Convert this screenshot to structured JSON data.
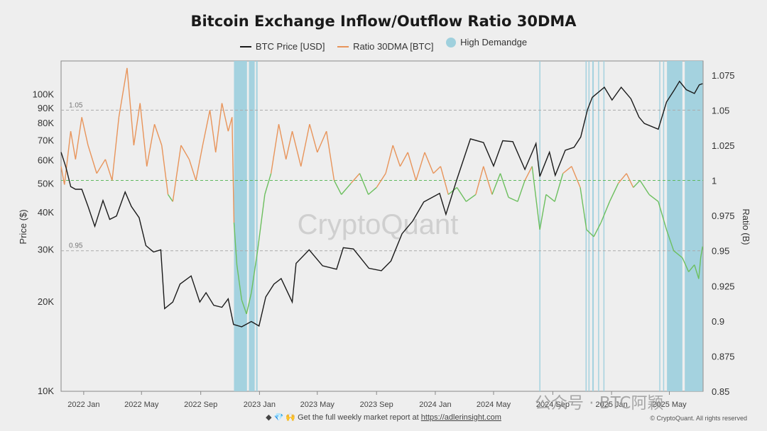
{
  "footer": {
    "icons": "◆ 💎 🙌",
    "text": "Get the full weekly market report at",
    "link": "https://adlerinsight.com",
    "copyright": "© CryptoQuant. All rights reserved"
  },
  "watermark": {
    "text": "公众号 · BTC阿颖"
  },
  "chart_data": {
    "type": "line",
    "title": "Bitcoin Exchange Inflow/Outflow Ratio 30DMA",
    "legend": [
      {
        "name": "BTC Price [USD]",
        "color": "#1a1a1a",
        "kind": "line"
      },
      {
        "name": "Ratio 30DMA [BTC]",
        "color": "#e8945a",
        "kind": "line"
      },
      {
        "name": "High Demandge",
        "color": "#9fd0dd",
        "kind": "dot"
      }
    ],
    "ylabel_left": "Price ($)",
    "ylabel_right": "Ratio (B)",
    "watermark": "CryptoQuant",
    "x_range": [
      "2021-11-15",
      "2025-07-10"
    ],
    "x_ticks": [
      {
        "label": "2022 Jan",
        "date": "2022-01-01"
      },
      {
        "label": "2022 May",
        "date": "2022-05-01"
      },
      {
        "label": "2022 Sep",
        "date": "2022-09-01"
      },
      {
        "label": "2023 Jan",
        "date": "2023-01-01"
      },
      {
        "label": "2023 May",
        "date": "2023-05-01"
      },
      {
        "label": "2023 Sep",
        "date": "2023-09-01"
      },
      {
        "label": "2024 Jan",
        "date": "2024-01-01"
      },
      {
        "label": "2024 May",
        "date": "2024-05-01"
      },
      {
        "label": "2024 Sep",
        "date": "2024-09-01"
      },
      {
        "label": "2025 Jan",
        "date": "2025-01-01"
      },
      {
        "label": "2025 May",
        "date": "2025-05-01"
      }
    ],
    "y_left": {
      "scale": "log",
      "range": [
        10000,
        130000
      ],
      "ticks": [
        {
          "label": "10K",
          "value": 10000
        },
        {
          "label": "20K",
          "value": 20000
        },
        {
          "label": "30K",
          "value": 30000
        },
        {
          "label": "40K",
          "value": 40000
        },
        {
          "label": "50K",
          "value": 50000
        },
        {
          "label": "60K",
          "value": 60000
        },
        {
          "label": "70K",
          "value": 70000
        },
        {
          "label": "80K",
          "value": 80000
        },
        {
          "label": "90K",
          "value": 90000
        },
        {
          "label": "100K",
          "value": 100000
        }
      ]
    },
    "y_right": {
      "scale": "linear",
      "range": [
        0.85,
        1.085
      ],
      "ticks": [
        {
          "label": "0.85",
          "value": 0.85
        },
        {
          "label": "0.875",
          "value": 0.875
        },
        {
          "label": "0.9",
          "value": 0.9
        },
        {
          "label": "0.925",
          "value": 0.925
        },
        {
          "label": "0.95",
          "value": 0.95
        },
        {
          "label": "0.975",
          "value": 0.975
        },
        {
          "label": "1",
          "value": 1.0
        },
        {
          "label": "1.025",
          "value": 1.025
        },
        {
          "label": "1.05",
          "value": 1.05
        },
        {
          "label": "1.075",
          "value": 1.075
        }
      ]
    },
    "reference_lines": [
      {
        "label": "1.05",
        "value": 1.05,
        "color": "#aaaaaa"
      },
      {
        "label": "",
        "value": 1.0,
        "color": "#5fb85f"
      },
      {
        "label": "0.95",
        "value": 0.95,
        "color": "#aaaaaa"
      }
    ],
    "ratio_colors": {
      "above": "#e8945a",
      "below": "#6cbf5e"
    },
    "series": [
      {
        "name": "BTC Price [USD]",
        "axis": "left",
        "color": "#1a1a1a",
        "points": [
          [
            "2021-11-15",
            64000
          ],
          [
            "2021-11-25",
            57000
          ],
          [
            "2021-12-05",
            49000
          ],
          [
            "2021-12-15",
            48000
          ],
          [
            "2021-12-28",
            48000
          ],
          [
            "2022-01-10",
            42000
          ],
          [
            "2022-01-24",
            36000
          ],
          [
            "2022-02-10",
            44000
          ],
          [
            "2022-02-24",
            38000
          ],
          [
            "2022-03-10",
            39000
          ],
          [
            "2022-03-28",
            47000
          ],
          [
            "2022-04-10",
            42000
          ],
          [
            "2022-04-26",
            38500
          ],
          [
            "2022-05-10",
            31000
          ],
          [
            "2022-05-26",
            29500
          ],
          [
            "2022-06-10",
            30000
          ],
          [
            "2022-06-18",
            19000
          ],
          [
            "2022-07-05",
            20000
          ],
          [
            "2022-07-20",
            23000
          ],
          [
            "2022-08-12",
            24500
          ],
          [
            "2022-08-30",
            20000
          ],
          [
            "2022-09-12",
            21500
          ],
          [
            "2022-09-28",
            19500
          ],
          [
            "2022-10-15",
            19200
          ],
          [
            "2022-10-28",
            20500
          ],
          [
            "2022-11-08",
            16800
          ],
          [
            "2022-11-25",
            16500
          ],
          [
            "2022-12-15",
            17200
          ],
          [
            "2022-12-31",
            16600
          ],
          [
            "2023-01-14",
            20800
          ],
          [
            "2023-01-31",
            23000
          ],
          [
            "2023-02-15",
            24000
          ],
          [
            "2023-03-10",
            20000
          ],
          [
            "2023-03-18",
            27000
          ],
          [
            "2023-04-14",
            30000
          ],
          [
            "2023-05-12",
            26500
          ],
          [
            "2023-06-10",
            25800
          ],
          [
            "2023-06-24",
            30500
          ],
          [
            "2023-07-15",
            30200
          ],
          [
            "2023-08-16",
            26000
          ],
          [
            "2023-09-11",
            25500
          ],
          [
            "2023-10-01",
            27500
          ],
          [
            "2023-10-24",
            34000
          ],
          [
            "2023-11-15",
            37500
          ],
          [
            "2023-12-08",
            43500
          ],
          [
            "2024-01-10",
            46500
          ],
          [
            "2024-01-23",
            39500
          ],
          [
            "2024-02-15",
            52000
          ],
          [
            "2024-03-14",
            71000
          ],
          [
            "2024-04-10",
            69000
          ],
          [
            "2024-05-01",
            57500
          ],
          [
            "2024-05-20",
            70000
          ],
          [
            "2024-06-10",
            69500
          ],
          [
            "2024-07-05",
            56000
          ],
          [
            "2024-07-28",
            68500
          ],
          [
            "2024-08-05",
            53000
          ],
          [
            "2024-08-25",
            64000
          ],
          [
            "2024-09-06",
            53500
          ],
          [
            "2024-09-27",
            65000
          ],
          [
            "2024-10-15",
            66500
          ],
          [
            "2024-10-29",
            72000
          ],
          [
            "2024-11-12",
            89000
          ],
          [
            "2024-11-22",
            98000
          ],
          [
            "2024-12-17",
            106000
          ],
          [
            "2025-01-02",
            96000
          ],
          [
            "2025-01-21",
            106000
          ],
          [
            "2025-02-10",
            97000
          ],
          [
            "2025-02-27",
            84000
          ],
          [
            "2025-03-10",
            80000
          ],
          [
            "2025-04-08",
            76500
          ],
          [
            "2025-04-25",
            94500
          ],
          [
            "2025-05-10",
            103000
          ],
          [
            "2025-05-22",
            111000
          ],
          [
            "2025-06-05",
            104000
          ],
          [
            "2025-06-22",
            101000
          ],
          [
            "2025-07-02",
            108000
          ],
          [
            "2025-07-09",
            109000
          ]
        ]
      },
      {
        "name": "Ratio 30DMA [BTC]",
        "axis": "right",
        "color": "#e8945a",
        "points": [
          [
            "2021-11-15",
            1.01
          ],
          [
            "2021-11-22",
            0.997
          ],
          [
            "2021-12-05",
            1.035
          ],
          [
            "2021-12-15",
            1.015
          ],
          [
            "2021-12-28",
            1.045
          ],
          [
            "2022-01-10",
            1.025
          ],
          [
            "2022-01-28",
            1.005
          ],
          [
            "2022-02-15",
            1.015
          ],
          [
            "2022-03-01",
            1.0
          ],
          [
            "2022-03-15",
            1.045
          ],
          [
            "2022-04-01",
            1.08
          ],
          [
            "2022-04-15",
            1.025
          ],
          [
            "2022-04-28",
            1.055
          ],
          [
            "2022-05-12",
            1.01
          ],
          [
            "2022-05-28",
            1.04
          ],
          [
            "2022-06-12",
            1.025
          ],
          [
            "2022-06-25",
            0.99
          ],
          [
            "2022-07-05",
            0.985
          ],
          [
            "2022-07-22",
            1.025
          ],
          [
            "2022-08-08",
            1.015
          ],
          [
            "2022-08-22",
            1.0
          ],
          [
            "2022-09-05",
            1.025
          ],
          [
            "2022-09-20",
            1.05
          ],
          [
            "2022-10-02",
            1.02
          ],
          [
            "2022-10-15",
            1.055
          ],
          [
            "2022-10-28",
            1.035
          ],
          [
            "2022-11-05",
            1.045
          ],
          [
            "2022-11-09",
            0.97
          ],
          [
            "2022-11-15",
            0.94
          ],
          [
            "2022-11-25",
            0.915
          ],
          [
            "2022-12-05",
            0.905
          ],
          [
            "2022-12-15",
            0.92
          ],
          [
            "2022-12-28",
            0.95
          ],
          [
            "2023-01-12",
            0.99
          ],
          [
            "2023-01-25",
            1.005
          ],
          [
            "2023-02-10",
            1.04
          ],
          [
            "2023-02-25",
            1.015
          ],
          [
            "2023-03-10",
            1.035
          ],
          [
            "2023-03-28",
            1.01
          ],
          [
            "2023-04-15",
            1.04
          ],
          [
            "2023-05-01",
            1.02
          ],
          [
            "2023-05-20",
            1.035
          ],
          [
            "2023-06-05",
            1.0
          ],
          [
            "2023-06-20",
            0.99
          ],
          [
            "2023-07-10",
            0.998
          ],
          [
            "2023-07-28",
            1.005
          ],
          [
            "2023-08-15",
            0.99
          ],
          [
            "2023-09-01",
            0.995
          ],
          [
            "2023-09-20",
            1.005
          ],
          [
            "2023-10-05",
            1.025
          ],
          [
            "2023-10-20",
            1.01
          ],
          [
            "2023-11-05",
            1.02
          ],
          [
            "2023-11-22",
            1.0
          ],
          [
            "2023-12-10",
            1.02
          ],
          [
            "2023-12-28",
            1.005
          ],
          [
            "2024-01-12",
            1.01
          ],
          [
            "2024-01-28",
            0.99
          ],
          [
            "2024-02-15",
            0.995
          ],
          [
            "2024-03-05",
            0.985
          ],
          [
            "2024-03-25",
            0.99
          ],
          [
            "2024-04-10",
            1.01
          ],
          [
            "2024-04-28",
            0.99
          ],
          [
            "2024-05-15",
            1.005
          ],
          [
            "2024-06-01",
            0.988
          ],
          [
            "2024-06-20",
            0.985
          ],
          [
            "2024-07-05",
            1.0
          ],
          [
            "2024-07-20",
            1.01
          ],
          [
            "2024-08-05",
            0.965
          ],
          [
            "2024-08-18",
            0.99
          ],
          [
            "2024-09-05",
            0.985
          ],
          [
            "2024-09-22",
            1.005
          ],
          [
            "2024-10-10",
            1.01
          ],
          [
            "2024-10-28",
            0.995
          ],
          [
            "2024-11-10",
            0.965
          ],
          [
            "2024-11-25",
            0.96
          ],
          [
            "2024-12-10",
            0.97
          ],
          [
            "2024-12-28",
            0.985
          ],
          [
            "2025-01-15",
            0.998
          ],
          [
            "2025-02-01",
            1.005
          ],
          [
            "2025-02-15",
            0.995
          ],
          [
            "2025-03-01",
            1.0
          ],
          [
            "2025-03-20",
            0.99
          ],
          [
            "2025-04-08",
            0.985
          ],
          [
            "2025-04-25",
            0.965
          ],
          [
            "2025-05-10",
            0.95
          ],
          [
            "2025-05-28",
            0.945
          ],
          [
            "2025-06-10",
            0.935
          ],
          [
            "2025-06-22",
            0.94
          ],
          [
            "2025-07-01",
            0.93
          ],
          [
            "2025-07-05",
            0.945
          ],
          [
            "2025-07-09",
            0.953
          ]
        ]
      }
    ],
    "high_demand_periods": [
      [
        "2022-11-09",
        "2022-12-06"
      ],
      [
        "2022-12-10",
        "2022-12-22"
      ],
      [
        "2022-12-25",
        "2022-12-28"
      ],
      [
        "2024-08-04",
        "2024-08-06"
      ],
      [
        "2024-11-08",
        "2024-11-10"
      ],
      [
        "2024-11-14",
        "2024-11-16"
      ],
      [
        "2024-11-22",
        "2024-11-25"
      ],
      [
        "2024-12-04",
        "2024-12-06"
      ],
      [
        "2024-12-15",
        "2024-12-17"
      ],
      [
        "2025-04-10",
        "2025-04-12"
      ],
      [
        "2025-04-18",
        "2025-04-20"
      ],
      [
        "2025-04-26",
        "2025-05-28"
      ],
      [
        "2025-06-02",
        "2025-07-09"
      ]
    ]
  }
}
